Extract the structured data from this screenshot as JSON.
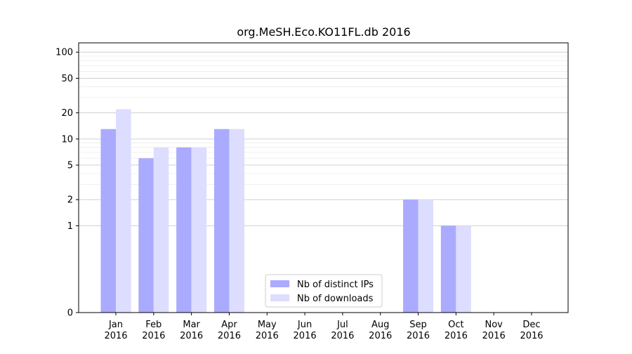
{
  "chart_data": {
    "type": "bar",
    "title": "org.MeSH.Eco.KO11FL.db 2016",
    "xlabel": "",
    "ylabel": "",
    "y_scale": "symlog",
    "ylim": [
      0,
      128
    ],
    "yticks": [
      0,
      1,
      2,
      5,
      10,
      20,
      50,
      100
    ],
    "ytick_labels": [
      "0",
      "1",
      "2",
      "5",
      "10",
      "20",
      "50",
      "100"
    ],
    "categories": [
      "Jan\n2016",
      "Feb\n2016",
      "Mar\n2016",
      "Apr\n2016",
      "May\n2016",
      "Jun\n2016",
      "Jul\n2016",
      "Aug\n2016",
      "Sep\n2016",
      "Oct\n2016",
      "Nov\n2016",
      "Dec\n2016"
    ],
    "series": [
      {
        "name": "Nb of distinct IPs",
        "color": "#aaaaff",
        "values": [
          13,
          6,
          8,
          13,
          0,
          0,
          0,
          0,
          2,
          1,
          0,
          0
        ]
      },
      {
        "name": "Nb of downloads",
        "color": "#ddddff",
        "values": [
          22,
          8,
          8,
          13,
          0,
          0,
          0,
          0,
          2,
          1,
          0,
          0
        ]
      }
    ],
    "grid": true,
    "legend_position": "lower center"
  }
}
